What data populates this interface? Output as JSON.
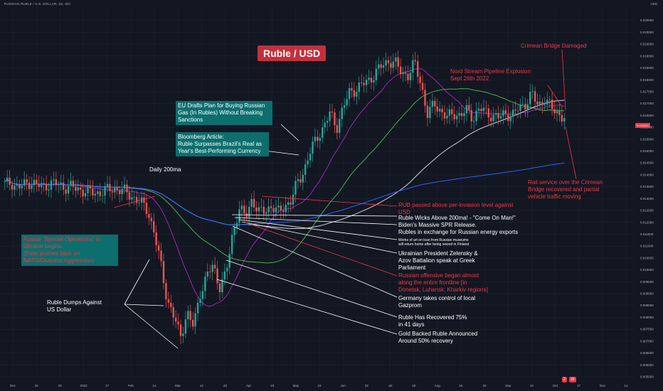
{
  "header": {
    "symbol_line": "RUSSIAN RUBLE / U.S. DOLLAR, 1D, IDC",
    "currency": "USD"
  },
  "title": "Ruble / USD",
  "colors": {
    "background": "#131722",
    "grid": "#1f2330",
    "up": "#26a69a",
    "down": "#ef5350",
    "ma20": "#9c27b0",
    "ma50": "#4caf50",
    "ma100": "#d1d4dc",
    "ma200": "#2962ff",
    "annotation_red": "#f23645",
    "annotation_teal": "#0d6e6e"
  },
  "chart_data": {
    "type": "candlestick",
    "x_tick_labels": [
      "Dec",
      "15",
      "22",
      "2022",
      "17",
      "Feb",
      "14",
      "Mar",
      "14",
      "23",
      "Apr",
      "18",
      "May",
      "16",
      "Jun",
      "22",
      "Jul",
      "18",
      "Aug",
      "15",
      "22",
      "Sep",
      "12",
      "Oct",
      "17",
      "Nov",
      "14"
    ],
    "y_tick_labels": [
      "0.020500",
      "0.020000",
      "0.019500",
      "0.019000",
      "0.018500",
      "0.018000",
      "0.017500",
      "0.017000",
      "0.016500",
      "0.016000",
      "0.015500",
      "0.015000",
      "0.014500",
      "0.014000",
      "0.013500",
      "0.013000",
      "0.012500",
      "0.012000",
      "0.011500",
      "0.011000",
      "0.010500",
      "0.010000",
      "0.009500",
      "0.009000",
      "0.008500",
      "0.008000",
      "0.007500",
      "0.007000",
      "0.006500",
      "0.006000",
      "0.005500"
    ],
    "ylim": [
      0.0055,
      0.021
    ],
    "last_price_label": "0.016400",
    "close_path_vertices": [
      [
        0.0136,
        0.01368,
        0.01345,
        0.01358,
        0.01372,
        0.01355,
        0.0135,
        0.01365,
        0.01362,
        0.01348,
        0.01352,
        0.0134,
        0.01335,
        0.01328,
        0.01322,
        0.0133,
        0.01338,
        0.01342,
        0.01335,
        0.0132,
        0.013,
        0.0128,
        0.0125,
        0.0115,
        0.0102,
        0.0087,
        0.008,
        0.0072,
        0.0082,
        0.0076,
        0.009,
        0.0097,
        0.0102,
        0.0093,
        0.0098,
        0.0115,
        0.0126,
        0.0122,
        0.013,
        0.0124,
        0.0125,
        0.0127,
        0.0124,
        0.0127,
        0.0129,
        0.0137,
        0.0142,
        0.015,
        0.0156,
        0.016,
        0.0166,
        0.016,
        0.0168,
        0.0175,
        0.0176,
        0.0178,
        0.018,
        0.0183,
        0.0186,
        0.0188,
        0.0187,
        0.0183,
        0.0182,
        0.0187,
        0.0178,
        0.0165,
        0.017,
        0.0167,
        0.0164,
        0.0166,
        0.0165,
        0.0167,
        0.0164,
        0.0168,
        0.0166,
        0.0165,
        0.0164,
        0.0166,
        0.0165,
        0.0168,
        0.017,
        0.0174,
        0.0169,
        0.0172,
        0.0168,
        0.0166,
        0.0164
      ]
    ],
    "series": [
      {
        "name": "MA 20",
        "color": "#9c27b0"
      },
      {
        "name": "MA 50",
        "color": "#4caf50"
      },
      {
        "name": "MA 100",
        "color": "#d1d4dc"
      },
      {
        "name": "MA 200",
        "color": "#2962ff"
      }
    ],
    "grid": true
  },
  "annotations": {
    "eu_drafts": "EU Drafts Plan for Buying Russian Gas (In Rubles) Without Breaking Sanctions",
    "bloomberg": "Bloomberg Article:\nRuble Surpasses Brazil's Real as Year's Best-Performing Currency",
    "daily_200ma": "Daily 200ma",
    "russia_ops": "Russia \"Special Operations\" in Ukraine begins.\n(Putin pushes back on NATO/Globalist Aggression)",
    "ruble_dumps": "Ruble Dumps Against\nUS Dollar",
    "crimean_bridge": "Crimean Bridge Damaged",
    "nord_stream": "Nord Stream Pipeline Explosion\nSept 26th 2022",
    "rail_service": "Rail service over the Crimean\nBridge recovered and partial\nvehicle traffic moving",
    "rub_passed": "RUB passed above per-invasion level against\nUSD",
    "wicks_above": "Ruble Wicks Above 200ma! - \"Come On Man!\"",
    "spr_release": "Biden's Massive SPR Release.\nRubles in exchange for Russian energy exports",
    "works_of_art": "Works of art on loan from Russian museums\nwill return home after being seized in Finland",
    "zelensky": "Ukrainian President Zelensky &\nAzov Battalion speak at Greek\nParliament",
    "russian_offensive": "Russian offensive began almost\nalong the entire frontline [in\nDonetsk, Luhansk, Kharkiv regions]",
    "germany_gazprom": "Germany takes control of local\nGazprom",
    "recovered_75": "Ruble Has Recovered 75%\nin 41 days",
    "gold_backed": "Gold Backed Ruble Announced\nAround 50% recovery"
  },
  "badges": {
    "b1": "2",
    "b2": "33"
  }
}
